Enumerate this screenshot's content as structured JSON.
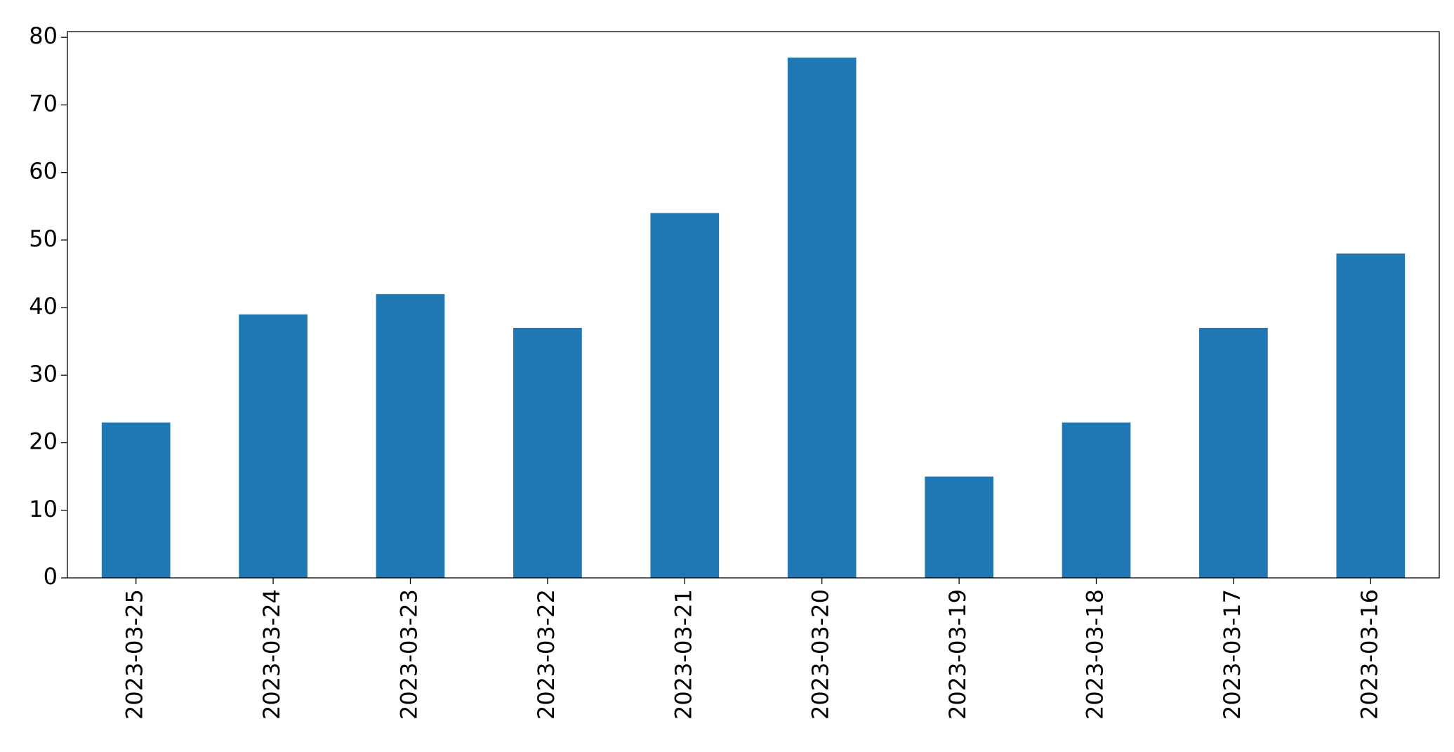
{
  "chart_data": {
    "type": "bar",
    "categories": [
      "2023-03-25",
      "2023-03-24",
      "2023-03-23",
      "2023-03-22",
      "2023-03-21",
      "2023-03-20",
      "2023-03-19",
      "2023-03-18",
      "2023-03-17",
      "2023-03-16"
    ],
    "values": [
      23,
      39,
      42,
      37,
      54,
      77,
      15,
      23,
      37,
      48
    ],
    "color": "#1f77b4",
    "ylim": [
      0,
      80.85
    ],
    "yticks": [
      0,
      10,
      20,
      30,
      40,
      50,
      60,
      70,
      80
    ],
    "grid": false
  }
}
